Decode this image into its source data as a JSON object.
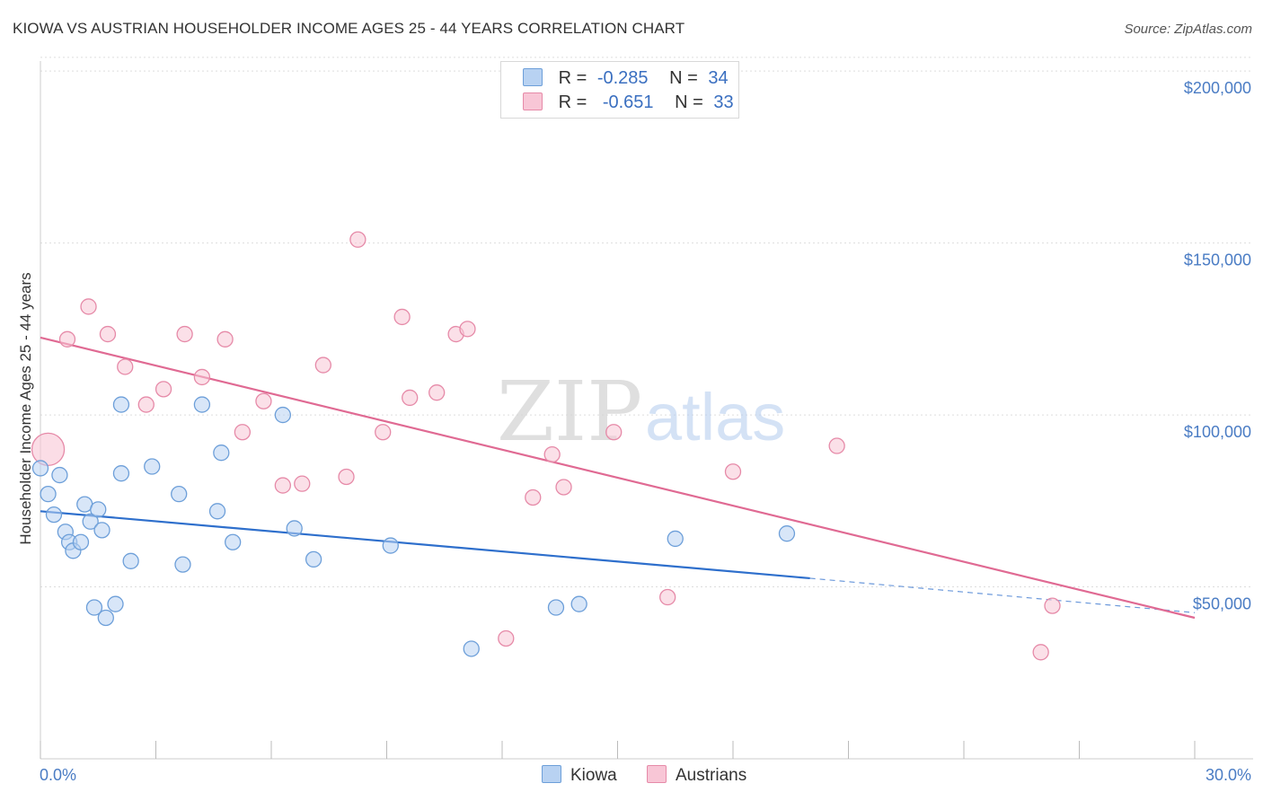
{
  "header": {
    "title": "KIOWA VS AUSTRIAN HOUSEHOLDER INCOME AGES 25 - 44 YEARS CORRELATION CHART",
    "source": "Source: ZipAtlas.com"
  },
  "watermark": {
    "zip": "ZIP",
    "atlas": "atlas"
  },
  "legend": {
    "kiowa": {
      "r_label": "R =",
      "r_value": "-0.285",
      "n_label": "N =",
      "n_value": "34"
    },
    "austrians": {
      "r_label": "R =",
      "r_value": "-0.651",
      "n_label": "N =",
      "n_value": "33"
    }
  },
  "bottom_legend": {
    "kiowa": "Kiowa",
    "austrians": "Austrians"
  },
  "colors": {
    "kiowa_fill": "#b8d2f2",
    "kiowa_stroke": "#6d9fd9",
    "kiowa_line": "#2e6fcc",
    "austrians_fill": "#f8c6d6",
    "austrians_stroke": "#e68aa8",
    "austrians_line": "#e06a93"
  },
  "chart_data": {
    "type": "scatter",
    "xlabel": "",
    "ylabel": "Householder Income Ages 25 - 44 years",
    "xlim": [
      0,
      30
    ],
    "ylim": [
      0,
      205000
    ],
    "x_tick_labels": [
      "0.0%",
      "30.0%"
    ],
    "y_ticks": [
      50000,
      100000,
      150000,
      200000
    ],
    "y_tick_labels": [
      "$50,000",
      "$100,000",
      "$150,000",
      "$200,000"
    ],
    "grid": true,
    "series": [
      {
        "name": "Kiowa",
        "points": [
          [
            0.0,
            84500
          ],
          [
            0.2,
            77000
          ],
          [
            0.35,
            71000
          ],
          [
            0.5,
            82500
          ],
          [
            0.65,
            66000
          ],
          [
            0.75,
            63000
          ],
          [
            0.85,
            60500
          ],
          [
            1.05,
            63000
          ],
          [
            1.15,
            74000
          ],
          [
            1.3,
            69000
          ],
          [
            1.4,
            44000
          ],
          [
            1.5,
            72500
          ],
          [
            1.6,
            66500
          ],
          [
            1.7,
            41000
          ],
          [
            1.95,
            45000
          ],
          [
            2.1,
            83000
          ],
          [
            2.1,
            103000
          ],
          [
            2.35,
            57500
          ],
          [
            2.9,
            85000
          ],
          [
            3.6,
            77000
          ],
          [
            3.7,
            56500
          ],
          [
            4.2,
            103000
          ],
          [
            4.6,
            72000
          ],
          [
            4.7,
            89000
          ],
          [
            5.0,
            63000
          ],
          [
            6.3,
            100000
          ],
          [
            6.6,
            67000
          ],
          [
            7.1,
            58000
          ],
          [
            9.1,
            62000
          ],
          [
            11.2,
            32000
          ],
          [
            13.4,
            44000
          ],
          [
            14.0,
            45000
          ],
          [
            16.5,
            64000
          ],
          [
            19.4,
            65500
          ]
        ],
        "trend": {
          "x": [
            0,
            20
          ],
          "y": [
            72000,
            52500
          ]
        },
        "trend_extrapolated": {
          "x": [
            20,
            30
          ],
          "y": [
            52500,
            42500
          ]
        }
      },
      {
        "name": "Austrians",
        "points": [
          [
            0.2,
            90000
          ],
          [
            0.7,
            122000
          ],
          [
            1.25,
            131500
          ],
          [
            1.75,
            123500
          ],
          [
            2.2,
            114000
          ],
          [
            2.75,
            103000
          ],
          [
            3.2,
            107500
          ],
          [
            3.75,
            123500
          ],
          [
            4.2,
            111000
          ],
          [
            4.8,
            122000
          ],
          [
            5.25,
            95000
          ],
          [
            5.8,
            104000
          ],
          [
            6.3,
            79500
          ],
          [
            6.8,
            80000
          ],
          [
            7.35,
            114500
          ],
          [
            7.95,
            82000
          ],
          [
            8.25,
            151000
          ],
          [
            8.9,
            95000
          ],
          [
            9.4,
            128500
          ],
          [
            9.6,
            105000
          ],
          [
            10.3,
            106500
          ],
          [
            10.8,
            123500
          ],
          [
            11.1,
            125000
          ],
          [
            12.1,
            35000
          ],
          [
            12.8,
            76000
          ],
          [
            13.3,
            88500
          ],
          [
            13.6,
            79000
          ],
          [
            14.9,
            95000
          ],
          [
            16.3,
            47000
          ],
          [
            18.0,
            83500
          ],
          [
            20.7,
            91000
          ],
          [
            26.0,
            31000
          ],
          [
            26.3,
            44500
          ]
        ],
        "trend": {
          "x": [
            0,
            30
          ],
          "y": [
            122500,
            41000
          ]
        }
      }
    ]
  }
}
